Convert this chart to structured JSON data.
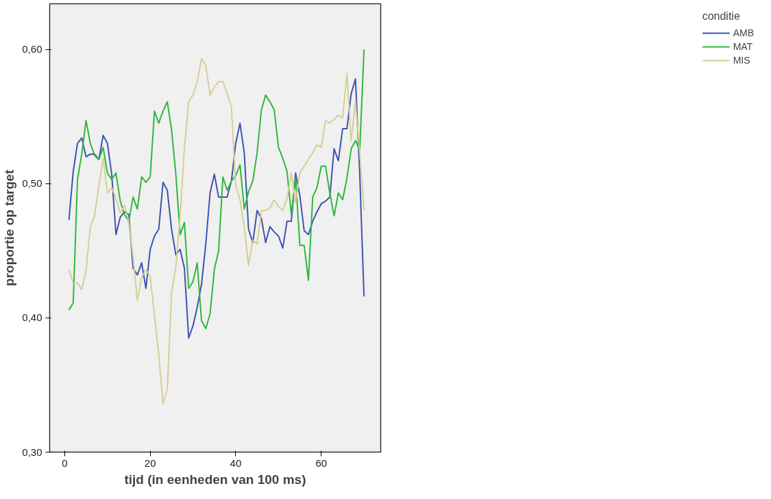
{
  "chart_data": {
    "type": "line",
    "xlabel": "tijd (in eenheden van 100 ms)",
    "ylabel": "proportie op target",
    "legend_title": "conditie",
    "legend": "top right",
    "grid": false,
    "marker": "none",
    "line_style": "solid",
    "x": [
      1,
      2,
      3,
      4,
      5,
      6,
      7,
      8,
      9,
      10,
      11,
      12,
      13,
      14,
      15,
      16,
      17,
      18,
      19,
      20,
      21,
      22,
      23,
      24,
      25,
      26,
      27,
      28,
      29,
      30,
      31,
      32,
      33,
      34,
      35,
      36,
      37,
      38,
      39,
      40,
      41,
      42,
      43,
      44,
      45,
      46,
      47,
      48,
      49,
      50,
      51,
      52,
      53,
      54,
      55,
      56,
      57,
      58,
      59,
      60,
      61,
      62,
      63,
      64,
      65,
      66,
      67,
      68,
      69,
      70
    ],
    "xlim": [
      -3.5,
      73.9
    ],
    "xticks": [
      0,
      20,
      40,
      60
    ],
    "ylim": [
      0.3,
      0.634
    ],
    "yticks": [
      {
        "value": 0.3,
        "label": "0,30"
      },
      {
        "value": 0.4,
        "label": "0,40"
      },
      {
        "value": 0.5,
        "label": "0,50"
      },
      {
        "value": 0.6,
        "label": "0,60"
      }
    ],
    "series": [
      {
        "name": "AMB",
        "color": "#3e53b0",
        "values": [
          0.473,
          0.509,
          0.53,
          0.534,
          0.52,
          0.522,
          0.522,
          0.518,
          0.536,
          0.53,
          0.507,
          0.462,
          0.475,
          0.479,
          0.477,
          0.437,
          0.432,
          0.441,
          0.422,
          0.451,
          0.461,
          0.466,
          0.501,
          0.495,
          0.466,
          0.447,
          0.451,
          0.437,
          0.385,
          0.394,
          0.408,
          0.425,
          0.455,
          0.493,
          0.507,
          0.49,
          0.49,
          0.49,
          0.502,
          0.53,
          0.545,
          0.523,
          0.466,
          0.456,
          0.48,
          0.474,
          0.456,
          0.468,
          0.464,
          0.461,
          0.452,
          0.472,
          0.472,
          0.508,
          0.491,
          0.465,
          0.462,
          0.472,
          0.479,
          0.485,
          0.487,
          0.49,
          0.526,
          0.517,
          0.541,
          0.541,
          0.567,
          0.578,
          0.507,
          0.416
        ]
      },
      {
        "name": "MAT",
        "color": "#2db83d",
        "values": [
          0.406,
          0.411,
          0.503,
          0.522,
          0.547,
          0.53,
          0.521,
          0.518,
          0.527,
          0.508,
          0.503,
          0.508,
          0.487,
          0.477,
          0.472,
          0.49,
          0.481,
          0.505,
          0.501,
          0.505,
          0.554,
          0.545,
          0.554,
          0.561,
          0.54,
          0.507,
          0.462,
          0.471,
          0.422,
          0.427,
          0.441,
          0.398,
          0.392,
          0.403,
          0.436,
          0.45,
          0.505,
          0.495,
          0.502,
          0.506,
          0.514,
          0.481,
          0.494,
          0.502,
          0.523,
          0.555,
          0.566,
          0.561,
          0.555,
          0.527,
          0.519,
          0.509,
          0.477,
          0.504,
          0.454,
          0.454,
          0.428,
          0.49,
          0.497,
          0.513,
          0.513,
          0.493,
          0.476,
          0.493,
          0.488,
          0.504,
          0.526,
          0.532,
          0.525,
          0.6
        ]
      },
      {
        "name": "MIS",
        "color": "#d6cf94",
        "values": [
          0.436,
          0.426,
          0.426,
          0.421,
          0.435,
          0.468,
          0.476,
          0.498,
          0.519,
          0.493,
          0.497,
          0.489,
          0.478,
          0.484,
          0.471,
          0.445,
          0.413,
          0.43,
          0.436,
          0.431,
          0.402,
          0.373,
          0.336,
          0.347,
          0.419,
          0.438,
          0.476,
          0.526,
          0.561,
          0.566,
          0.576,
          0.593,
          0.588,
          0.566,
          0.572,
          0.576,
          0.576,
          0.567,
          0.557,
          0.499,
          0.488,
          0.468,
          0.439,
          0.458,
          0.455,
          0.48,
          0.48,
          0.482,
          0.488,
          0.483,
          0.48,
          0.489,
          0.508,
          0.486,
          0.508,
          0.513,
          0.518,
          0.523,
          0.529,
          0.527,
          0.547,
          0.545,
          0.548,
          0.551,
          0.549,
          0.582,
          0.532,
          0.561,
          0.523,
          0.48
        ]
      }
    ]
  }
}
